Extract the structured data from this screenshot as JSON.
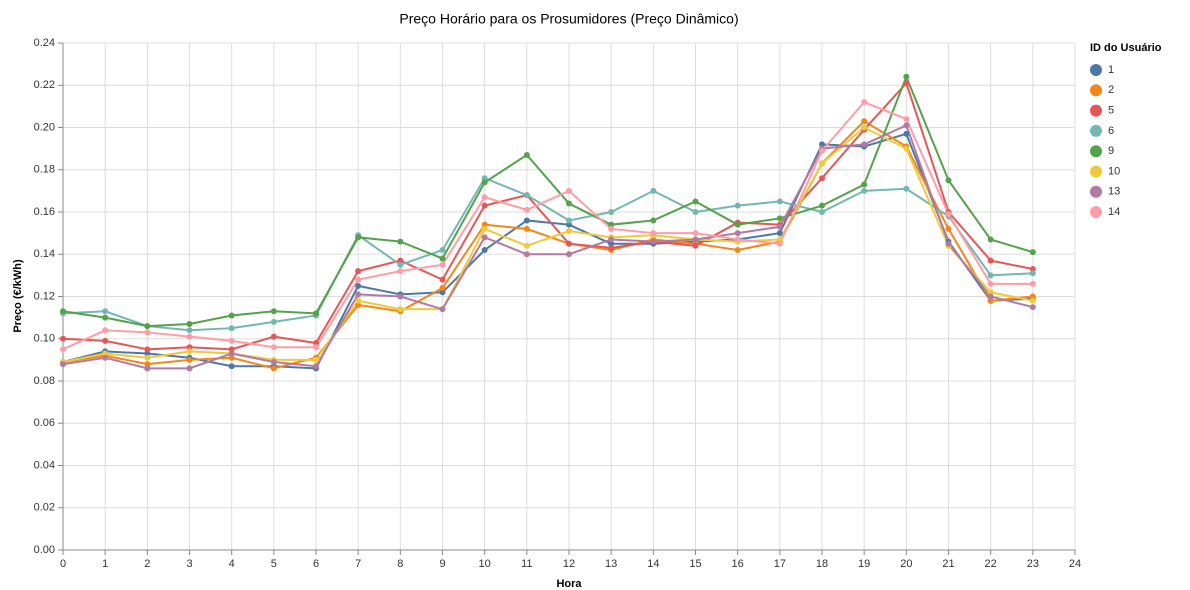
{
  "chart_data": {
    "type": "line",
    "title": "Preço Horário para os Prosumidores (Preço Dinâmico)",
    "x_label": "Hora",
    "y_label": "Preço (€/kWh)",
    "legend_title": "ID do Usuário",
    "legend": "right",
    "grid": true,
    "x": [
      0,
      1,
      2,
      3,
      4,
      5,
      6,
      7,
      8,
      9,
      10,
      11,
      12,
      13,
      14,
      15,
      16,
      17,
      18,
      19,
      20,
      21,
      22,
      23
    ],
    "xlim": [
      0,
      24
    ],
    "xticks": [
      0,
      1,
      2,
      3,
      4,
      5,
      6,
      7,
      8,
      9,
      10,
      11,
      12,
      13,
      14,
      15,
      16,
      17,
      18,
      19,
      20,
      21,
      22,
      23,
      24
    ],
    "ylim": [
      0,
      0.24
    ],
    "yticks": [
      {
        "value": 0,
        "label": "0.00"
      },
      {
        "value": 0.02,
        "label": "0.02"
      },
      {
        "value": 0.04,
        "label": "0.04"
      },
      {
        "value": 0.06,
        "label": "0.06"
      },
      {
        "value": 0.08,
        "label": "0.08"
      },
      {
        "value": 0.1,
        "label": "0.10"
      },
      {
        "value": 0.12,
        "label": "0.12"
      },
      {
        "value": 0.14,
        "label": "0.14"
      },
      {
        "value": 0.16,
        "label": "0.16"
      },
      {
        "value": 0.18,
        "label": "0.18"
      },
      {
        "value": 0.2,
        "label": "0.20"
      },
      {
        "value": 0.22,
        "label": "0.22"
      },
      {
        "value": 0.24,
        "label": "0.24"
      }
    ],
    "series": [
      {
        "name": "1",
        "color": "#4c78a8",
        "values": [
          0.089,
          0.094,
          0.093,
          0.091,
          0.087,
          0.087,
          0.086,
          0.125,
          0.121,
          0.122,
          0.142,
          0.156,
          0.154,
          0.145,
          0.145,
          0.146,
          0.147,
          0.15,
          0.192,
          0.191,
          0.197,
          0.146,
          0.118,
          0.119
        ]
      },
      {
        "name": "2",
        "color": "#f58518",
        "values": [
          0.089,
          0.092,
          0.088,
          0.09,
          0.091,
          0.086,
          0.091,
          0.116,
          0.113,
          0.124,
          0.154,
          0.152,
          0.145,
          0.142,
          0.147,
          0.145,
          0.142,
          0.146,
          0.183,
          0.203,
          0.191,
          0.152,
          0.118,
          0.12
        ]
      },
      {
        "name": "5",
        "color": "#e45756",
        "values": [
          0.1,
          0.099,
          0.095,
          0.096,
          0.095,
          0.101,
          0.098,
          0.132,
          0.137,
          0.128,
          0.163,
          0.168,
          0.145,
          0.143,
          0.146,
          0.144,
          0.155,
          0.154,
          0.176,
          0.199,
          0.221,
          0.16,
          0.137,
          0.133
        ]
      },
      {
        "name": "6",
        "color": "#72b7b2",
        "values": [
          0.112,
          0.113,
          0.106,
          0.104,
          0.105,
          0.108,
          0.111,
          0.149,
          0.135,
          0.142,
          0.176,
          0.168,
          0.156,
          0.16,
          0.17,
          0.16,
          0.163,
          0.165,
          0.16,
          0.17,
          0.171,
          0.158,
          0.13,
          0.131
        ]
      },
      {
        "name": "9",
        "color": "#54a24b",
        "values": [
          0.113,
          0.11,
          0.106,
          0.107,
          0.111,
          0.113,
          0.112,
          0.148,
          0.146,
          0.138,
          0.174,
          0.187,
          0.164,
          0.154,
          0.156,
          0.165,
          0.154,
          0.157,
          0.163,
          0.173,
          0.224,
          0.175,
          0.147,
          0.141
        ]
      },
      {
        "name": "10",
        "color": "#eeca3b",
        "values": [
          0.089,
          0.093,
          0.091,
          0.094,
          0.093,
          0.09,
          0.09,
          0.118,
          0.114,
          0.114,
          0.152,
          0.144,
          0.151,
          0.148,
          0.149,
          0.147,
          0.146,
          0.147,
          0.183,
          0.2,
          0.19,
          0.144,
          0.122,
          0.118
        ]
      },
      {
        "name": "13",
        "color": "#b279a2",
        "values": [
          0.088,
          0.091,
          0.086,
          0.086,
          0.093,
          0.089,
          0.087,
          0.121,
          0.12,
          0.114,
          0.148,
          0.14,
          0.14,
          0.147,
          0.146,
          0.147,
          0.15,
          0.153,
          0.19,
          0.192,
          0.201,
          0.145,
          0.12,
          0.115
        ]
      },
      {
        "name": "14",
        "color": "#ff9da6",
        "values": [
          0.095,
          0.104,
          0.103,
          0.101,
          0.099,
          0.096,
          0.096,
          0.128,
          0.132,
          0.135,
          0.167,
          0.161,
          0.17,
          0.152,
          0.15,
          0.15,
          0.147,
          0.145,
          0.189,
          0.212,
          0.204,
          0.159,
          0.126,
          0.126
        ]
      }
    ]
  }
}
